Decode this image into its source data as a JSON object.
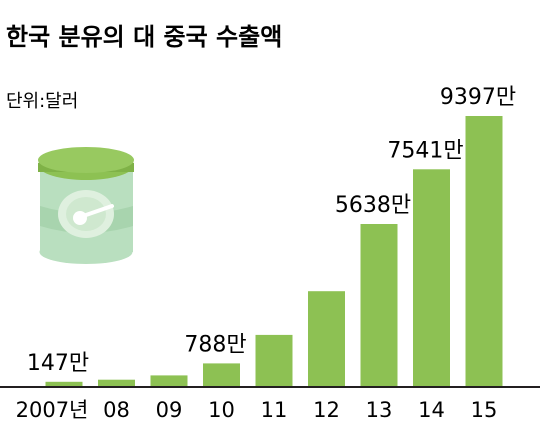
{
  "chart_data": {
    "type": "bar",
    "title": "한국 분유의 대 중국 수출액",
    "unit_label": "단위:달러",
    "categories": [
      "2007년",
      "08",
      "09",
      "10",
      "11",
      "12",
      "13",
      "14",
      "15"
    ],
    "values": [
      147,
      220,
      370,
      788,
      1780,
      3300,
      5638,
      7541,
      9397
    ],
    "value_unit": "만",
    "data_labels": [
      "147만",
      "",
      "",
      "788만",
      "",
      "",
      "5638만",
      "7541만",
      "9397만"
    ],
    "ylim": [
      0,
      9397
    ],
    "grid": false,
    "legend": "none",
    "bar_color": "#8dc153",
    "axis_color": "#231f20",
    "illustration": "formula-milk-can-icon"
  }
}
